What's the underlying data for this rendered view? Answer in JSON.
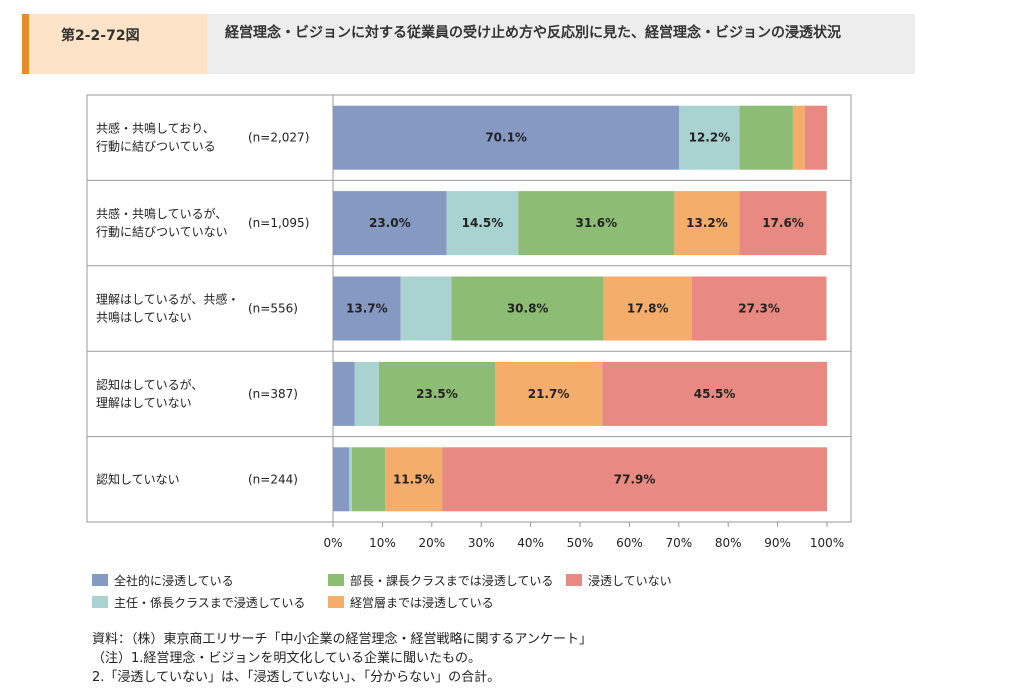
{
  "header": {
    "figure_number": "第2-2-72図",
    "title": "経営理念・ビジョンに対する従業員の受け止め方や反応別に見た、経営理念・ビジョンの浸透状況"
  },
  "colors": {
    "accent": "#e98a2b",
    "series": [
      "#8599c3",
      "#a8d3d0",
      "#8dbd74",
      "#f4ad6a",
      "#e88a82"
    ]
  },
  "chart_data": {
    "type": "bar",
    "orientation": "horizontal",
    "stacked": true,
    "categories": [
      [
        "共感・共鳴しており、",
        "行動に結びついている"
      ],
      [
        "共感・共鳴しているが、",
        "行動に結びついていない"
      ],
      [
        "理解はしているが、共感・",
        "共鳴はしていない"
      ],
      [
        "認知はしているが、",
        "理解はしていない"
      ],
      [
        "認知していない"
      ]
    ],
    "n_labels": [
      "(n=2,027)",
      "(n=1,095)",
      "(n=556)",
      "(n=387)",
      "(n=244)"
    ],
    "series": [
      {
        "name": "全社的に浸透している",
        "values": [
          70.1,
          23.0,
          13.7,
          4.4,
          3.3
        ]
      },
      {
        "name": "主任・係長クラスまで浸透している",
        "values": [
          12.2,
          14.5,
          10.3,
          4.9,
          0.5
        ]
      },
      {
        "name": "部長・課長クラスまでは浸透している",
        "values": [
          10.8,
          31.6,
          30.8,
          23.5,
          6.8
        ]
      },
      {
        "name": "経営層までは浸透している",
        "values": [
          2.4,
          13.2,
          17.8,
          21.7,
          11.5
        ]
      },
      {
        "name": "浸透していない",
        "values": [
          4.5,
          17.6,
          27.3,
          45.5,
          77.9
        ]
      }
    ],
    "data_labels": [
      [
        "70.1%",
        "12.2%",
        "",
        "",
        ""
      ],
      [
        "23.0%",
        "14.5%",
        "31.6%",
        "13.2%",
        "17.6%"
      ],
      [
        "13.7%",
        "",
        "30.8%",
        "17.8%",
        "27.3%"
      ],
      [
        "",
        "",
        "23.5%",
        "21.7%",
        "45.5%"
      ],
      [
        "",
        "",
        "",
        "11.5%",
        "77.9%"
      ]
    ],
    "xlim": [
      0,
      100
    ],
    "x_ticks": [
      "0%",
      "10%",
      "20%",
      "30%",
      "40%",
      "50%",
      "60%",
      "70%",
      "80%",
      "90%",
      "100%"
    ],
    "legend_position": "bottom"
  },
  "footnotes": [
    "資料：（株）東京商工リサーチ「中小企業の経営理念・経営戦略に関するアンケート」",
    "（注）1.経営理念・ビジョンを明文化している企業に聞いたもの。",
    "2.「浸透していない」は、「浸透していない」、「分からない」の合計。"
  ]
}
